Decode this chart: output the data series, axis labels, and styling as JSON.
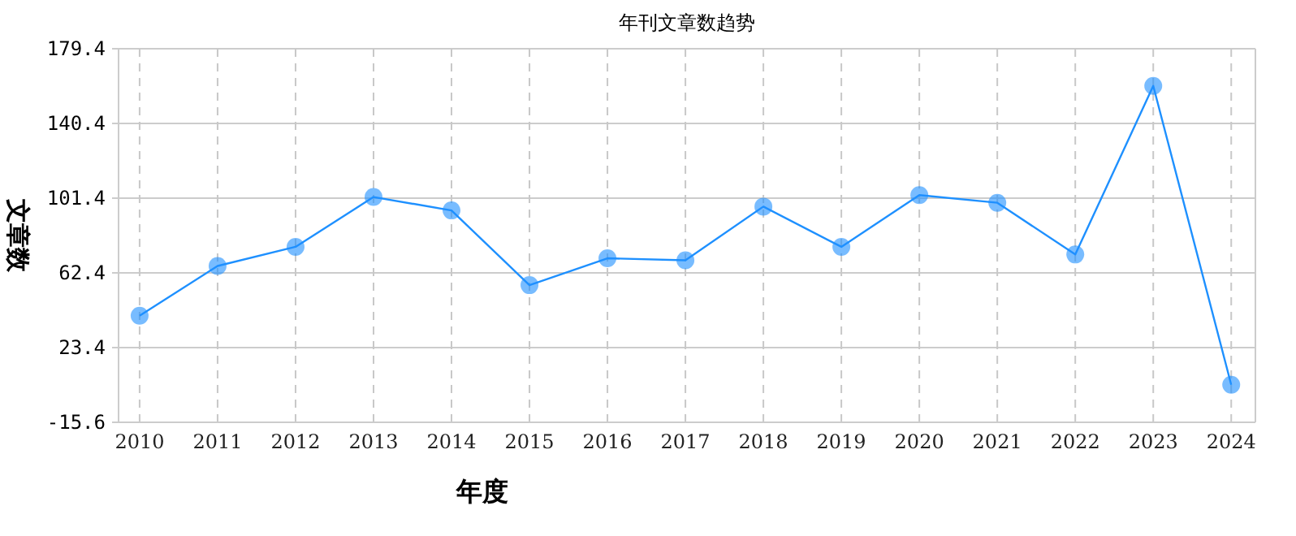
{
  "chart_data": {
    "type": "line",
    "title": "年刊文章数趋势",
    "xlabel": "年度",
    "ylabel": "文章数",
    "categories": [
      "2010",
      "2011",
      "2012",
      "2013",
      "2014",
      "2015",
      "2016",
      "2017",
      "2018",
      "2019",
      "2020",
      "2021",
      "2022",
      "2023",
      "2024"
    ],
    "series": [
      {
        "color": "#1e90ff",
        "values": [
          40,
          66,
          76,
          102,
          95,
          56,
          70,
          69,
          97,
          76,
          103,
          99,
          72,
          160,
          4
        ]
      }
    ],
    "ylim": [
      -15.6,
      179.4
    ],
    "yticks": [
      -15.6,
      23.4,
      62.4,
      101.4,
      140.4,
      179.4
    ],
    "grid": true,
    "marker": "circle",
    "line_style": "solid"
  }
}
